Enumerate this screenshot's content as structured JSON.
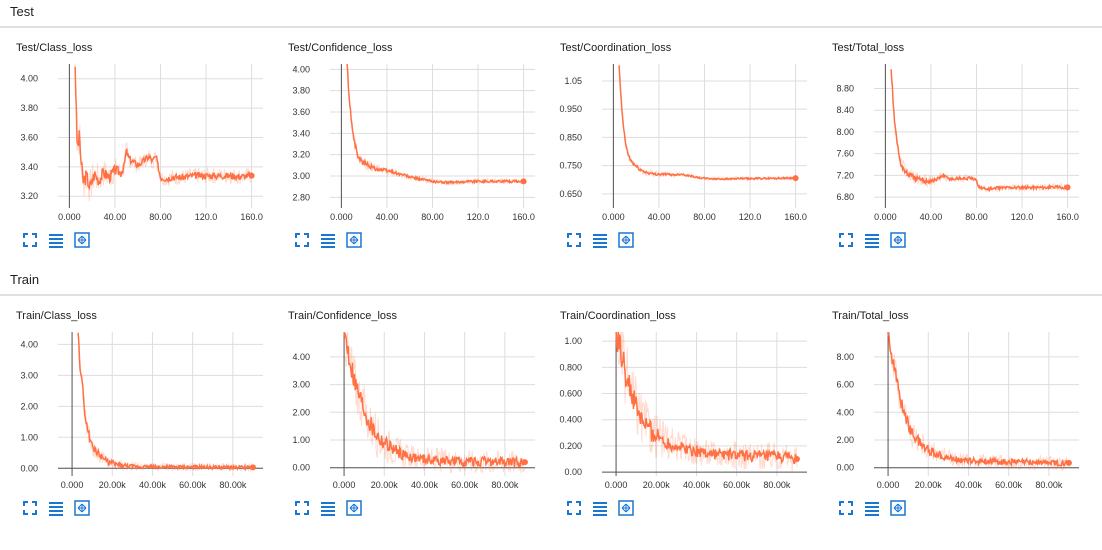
{
  "sections": [
    {
      "title": "Test"
    },
    {
      "title": "Train"
    }
  ],
  "accent_color": "#ff7043",
  "grid_color": "#dddddd",
  "icon_color": "#1976d2",
  "icons": [
    "fullscreen-icon",
    "data-table-icon",
    "fit-domain-icon"
  ],
  "chart_data": [
    {
      "type": "line",
      "title": "Test/Class_loss",
      "xlim": [
        -10,
        170
      ],
      "ylim": [
        3.12,
        4.1
      ],
      "xticks": [
        0,
        40,
        80,
        120,
        160
      ],
      "xtick_labels": [
        "0.000",
        "40.00",
        "80.00",
        "120.0",
        "160.0"
      ],
      "yticks": [
        3.2,
        3.4,
        3.6,
        3.8,
        4.0
      ],
      "ytick_labels": [
        "3.20",
        "3.40",
        "3.60",
        "3.80",
        "4.00"
      ],
      "series": [
        {
          "x": [
            5,
            6,
            7,
            9,
            10,
            12,
            15,
            18,
            22,
            26,
            30,
            35,
            40,
            45,
            48,
            50,
            52,
            55,
            60,
            65,
            70,
            73,
            76,
            78,
            80,
            85,
            90,
            100,
            110,
            120,
            130,
            140,
            150,
            160
          ],
          "y": [
            4.1,
            3.8,
            3.52,
            3.62,
            3.45,
            3.3,
            3.34,
            3.26,
            3.35,
            3.31,
            3.36,
            3.33,
            3.38,
            3.36,
            3.4,
            3.51,
            3.46,
            3.44,
            3.41,
            3.44,
            3.47,
            3.44,
            3.47,
            3.4,
            3.33,
            3.32,
            3.33,
            3.33,
            3.34,
            3.34,
            3.34,
            3.34,
            3.335,
            3.34
          ],
          "noise": 0.025
        }
      ]
    },
    {
      "type": "line",
      "title": "Test/Confidence_loss",
      "xlim": [
        -10,
        170
      ],
      "ylim": [
        2.7,
        4.05
      ],
      "xticks": [
        0,
        40,
        80,
        120,
        160
      ],
      "xtick_labels": [
        "0.000",
        "40.00",
        "80.00",
        "120.0",
        "160.0"
      ],
      "yticks": [
        2.8,
        3.0,
        3.2,
        3.4,
        3.6,
        3.8,
        4.0
      ],
      "ytick_labels": [
        "2.80",
        "3.00",
        "3.20",
        "3.40",
        "3.60",
        "3.80",
        "4.00"
      ],
      "series": [
        {
          "x": [
            5,
            7,
            9,
            11,
            13,
            15,
            18,
            22,
            26,
            30,
            35,
            40,
            45,
            50,
            55,
            60,
            65,
            70,
            75,
            80,
            90,
            100,
            110,
            120,
            130,
            140,
            150,
            160
          ],
          "y": [
            4.05,
            3.7,
            3.5,
            3.35,
            3.25,
            3.17,
            3.13,
            3.11,
            3.09,
            3.07,
            3.06,
            3.05,
            3.04,
            3.02,
            3.01,
            2.99,
            2.98,
            2.97,
            2.96,
            2.95,
            2.94,
            2.94,
            2.95,
            2.95,
            2.95,
            2.95,
            2.95,
            2.95
          ],
          "noise": 0.012
        }
      ]
    },
    {
      "type": "line",
      "title": "Test/Coordination_loss",
      "xlim": [
        -10,
        170
      ],
      "ylim": [
        0.6,
        1.11
      ],
      "xticks": [
        0,
        40,
        80,
        120,
        160
      ],
      "xtick_labels": [
        "0.000",
        "40.00",
        "80.00",
        "120.0",
        "160.0"
      ],
      "yticks": [
        0.65,
        0.75,
        0.85,
        0.95,
        1.05
      ],
      "ytick_labels": [
        "0.650",
        "0.750",
        "0.850",
        "0.950",
        "1.05"
      ],
      "series": [
        {
          "x": [
            5,
            7,
            9,
            11,
            13,
            15,
            18,
            22,
            26,
            30,
            35,
            40,
            45,
            50,
            55,
            60,
            65,
            70,
            75,
            80,
            90,
            100,
            110,
            120,
            130,
            140,
            150,
            160
          ],
          "y": [
            1.1,
            0.97,
            0.88,
            0.82,
            0.79,
            0.77,
            0.755,
            0.74,
            0.73,
            0.725,
            0.72,
            0.72,
            0.72,
            0.718,
            0.718,
            0.72,
            0.715,
            0.712,
            0.707,
            0.705,
            0.703,
            0.703,
            0.704,
            0.704,
            0.705,
            0.705,
            0.706,
            0.706
          ],
          "noise": 0.003
        }
      ]
    },
    {
      "type": "line",
      "title": "Test/Total_loss",
      "xlim": [
        -10,
        170
      ],
      "ylim": [
        6.6,
        9.25
      ],
      "xticks": [
        0,
        40,
        80,
        120,
        160
      ],
      "xtick_labels": [
        "0.000",
        "40.00",
        "80.00",
        "120.0",
        "160.0"
      ],
      "yticks": [
        6.8,
        7.2,
        7.6,
        8.0,
        8.4,
        8.8
      ],
      "ytick_labels": [
        "6.80",
        "7.20",
        "7.60",
        "8.00",
        "8.40",
        "8.80"
      ],
      "series": [
        {
          "x": [
            5,
            7,
            9,
            11,
            13,
            15,
            18,
            22,
            26,
            30,
            35,
            40,
            45,
            50,
            55,
            60,
            65,
            70,
            75,
            80,
            82,
            85,
            90,
            100,
            110,
            120,
            130,
            140,
            150,
            160
          ],
          "y": [
            9.2,
            8.5,
            8.0,
            7.7,
            7.45,
            7.35,
            7.25,
            7.2,
            7.15,
            7.12,
            7.1,
            7.1,
            7.12,
            7.2,
            7.15,
            7.13,
            7.15,
            7.14,
            7.15,
            7.1,
            7.0,
            6.96,
            6.95,
            6.97,
            6.98,
            6.97,
            6.98,
            6.98,
            6.98,
            6.98
          ],
          "noise": 0.03
        }
      ]
    },
    {
      "type": "line",
      "title": "Train/Class_loss",
      "xlim": [
        -7000,
        95000
      ],
      "ylim": [
        -0.25,
        4.4
      ],
      "xticks": [
        0,
        20000,
        40000,
        60000,
        80000
      ],
      "xtick_labels": [
        "0.000",
        "20.00k",
        "40.00k",
        "60.00k",
        "80.00k"
      ],
      "yticks": [
        0,
        1,
        2,
        3,
        4
      ],
      "ytick_labels": [
        "0.00",
        "1.00",
        "2.00",
        "3.00",
        "4.00"
      ],
      "series": [
        {
          "x": [
            3000,
            4000,
            5000,
            6000,
            7000,
            8000,
            9000,
            10000,
            12000,
            15000,
            18000,
            22000,
            26000,
            30000,
            40000,
            50000,
            60000,
            70000,
            80000,
            90000
          ],
          "y": [
            4.4,
            3.2,
            2.8,
            2.0,
            1.5,
            1.2,
            0.9,
            0.7,
            0.55,
            0.35,
            0.2,
            0.12,
            0.08,
            0.06,
            0.05,
            0.04,
            0.04,
            0.03,
            0.03,
            0.03
          ],
          "noise": 0.06
        }
      ]
    },
    {
      "type": "line",
      "title": "Train/Confidence_loss",
      "xlim": [
        -7000,
        95000
      ],
      "ylim": [
        -0.3,
        4.9
      ],
      "xticks": [
        0,
        20000,
        40000,
        60000,
        80000
      ],
      "xtick_labels": [
        "0.000",
        "20.00k",
        "40.00k",
        "60.00k",
        "80.00k"
      ],
      "yticks": [
        0,
        1,
        2,
        3,
        4
      ],
      "ytick_labels": [
        "0.00",
        "1.00",
        "2.00",
        "3.00",
        "4.00"
      ],
      "series": [
        {
          "x": [
            0,
            2000,
            4000,
            6000,
            8000,
            10000,
            12000,
            15000,
            18000,
            22000,
            26000,
            30000,
            35000,
            40000,
            50000,
            60000,
            70000,
            80000,
            90000
          ],
          "y": [
            4.9,
            4.2,
            3.5,
            2.9,
            2.5,
            2.1,
            1.7,
            1.3,
            1.0,
            0.8,
            0.6,
            0.45,
            0.35,
            0.3,
            0.25,
            0.22,
            0.2,
            0.2,
            0.2
          ],
          "noise": 0.2
        }
      ]
    },
    {
      "type": "line",
      "title": "Train/Coordination_loss",
      "xlim": [
        -7000,
        95000
      ],
      "ylim": [
        -0.03,
        1.07
      ],
      "xticks": [
        0,
        20000,
        40000,
        60000,
        80000
      ],
      "xtick_labels": [
        "0.000",
        "20.00k",
        "40.00k",
        "60.00k",
        "80.00k"
      ],
      "yticks": [
        0,
        0.2,
        0.4,
        0.6,
        0.8,
        1.0
      ],
      "ytick_labels": [
        "0.00",
        "0.200",
        "0.400",
        "0.600",
        "0.800",
        "1.00"
      ],
      "series": [
        {
          "x": [
            0,
            2000,
            4000,
            6000,
            8000,
            10000,
            12000,
            15000,
            18000,
            22000,
            26000,
            30000,
            35000,
            40000,
            50000,
            60000,
            70000,
            80000,
            90000
          ],
          "y": [
            1.07,
            0.95,
            0.8,
            0.68,
            0.58,
            0.5,
            0.42,
            0.35,
            0.3,
            0.26,
            0.22,
            0.2,
            0.18,
            0.16,
            0.14,
            0.13,
            0.12,
            0.12,
            0.1
          ],
          "noise": 0.05
        }
      ]
    },
    {
      "type": "line",
      "title": "Train/Total_loss",
      "xlim": [
        -7000,
        95000
      ],
      "ylim": [
        -0.6,
        9.8
      ],
      "xticks": [
        0,
        20000,
        40000,
        60000,
        80000
      ],
      "xtick_labels": [
        "0.000",
        "20.00k",
        "40.00k",
        "60.00k",
        "80.00k"
      ],
      "yticks": [
        0,
        2,
        4,
        6,
        8
      ],
      "ytick_labels": [
        "0.00",
        "2.00",
        "4.00",
        "6.00",
        "8.00"
      ],
      "series": [
        {
          "x": [
            0,
            2000,
            4000,
            6000,
            8000,
            10000,
            12000,
            15000,
            18000,
            22000,
            26000,
            30000,
            35000,
            40000,
            50000,
            60000,
            70000,
            80000,
            90000
          ],
          "y": [
            9.8,
            8.0,
            6.5,
            5.0,
            4.0,
            3.2,
            2.5,
            1.9,
            1.5,
            1.1,
            0.9,
            0.7,
            0.6,
            0.5,
            0.45,
            0.4,
            0.38,
            0.36,
            0.35
          ],
          "noise": 0.25
        }
      ]
    }
  ]
}
